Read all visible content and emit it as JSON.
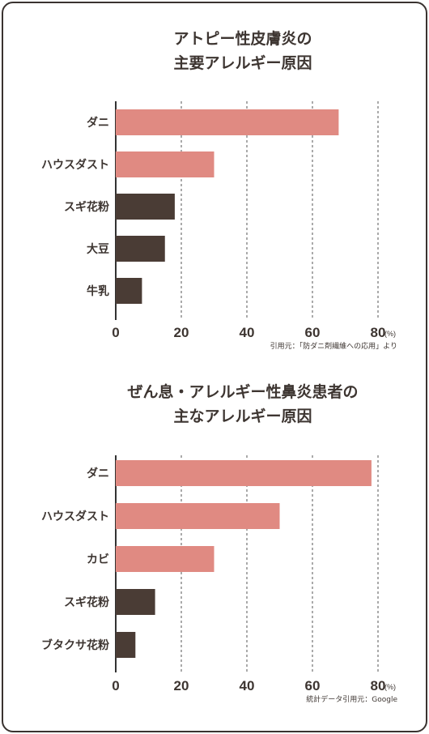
{
  "chart_data": [
    {
      "type": "bar",
      "orientation": "horizontal",
      "title_lines": [
        "アトピー性皮膚炎の",
        "主要アレルギー原因"
      ],
      "categories": [
        "ダニ",
        "ハウスダスト",
        "スギ花粉",
        "大豆",
        "牛乳"
      ],
      "values": [
        68,
        30,
        18,
        15,
        8
      ],
      "bar_colors": [
        "#e08a82",
        "#e08a82",
        "#4a3c35",
        "#4a3c35",
        "#4a3c35"
      ],
      "xlim": [
        0,
        80
      ],
      "xticks": [
        "0",
        "20",
        "40",
        "60",
        "80"
      ],
      "unit": "(%)",
      "grid": true,
      "source": "引用元：「防ダニ剤繊維への応用」より"
    },
    {
      "type": "bar",
      "orientation": "horizontal",
      "title_lines": [
        "ぜん息・アレルギー性鼻炎患者の",
        "主なアレルギー原因"
      ],
      "categories": [
        "ダニ",
        "ハウスダスト",
        "カビ",
        "スギ花粉",
        "ブタクサ花粉"
      ],
      "values": [
        78,
        50,
        30,
        12,
        6
      ],
      "bar_colors": [
        "#e08a82",
        "#e08a82",
        "#e08a82",
        "#4a3c35",
        "#4a3c35"
      ],
      "xlim": [
        0,
        80
      ],
      "xticks": [
        "0",
        "20",
        "40",
        "60",
        "80"
      ],
      "unit": "(%)",
      "grid": true,
      "source": "統計データ引用元：Google"
    }
  ]
}
